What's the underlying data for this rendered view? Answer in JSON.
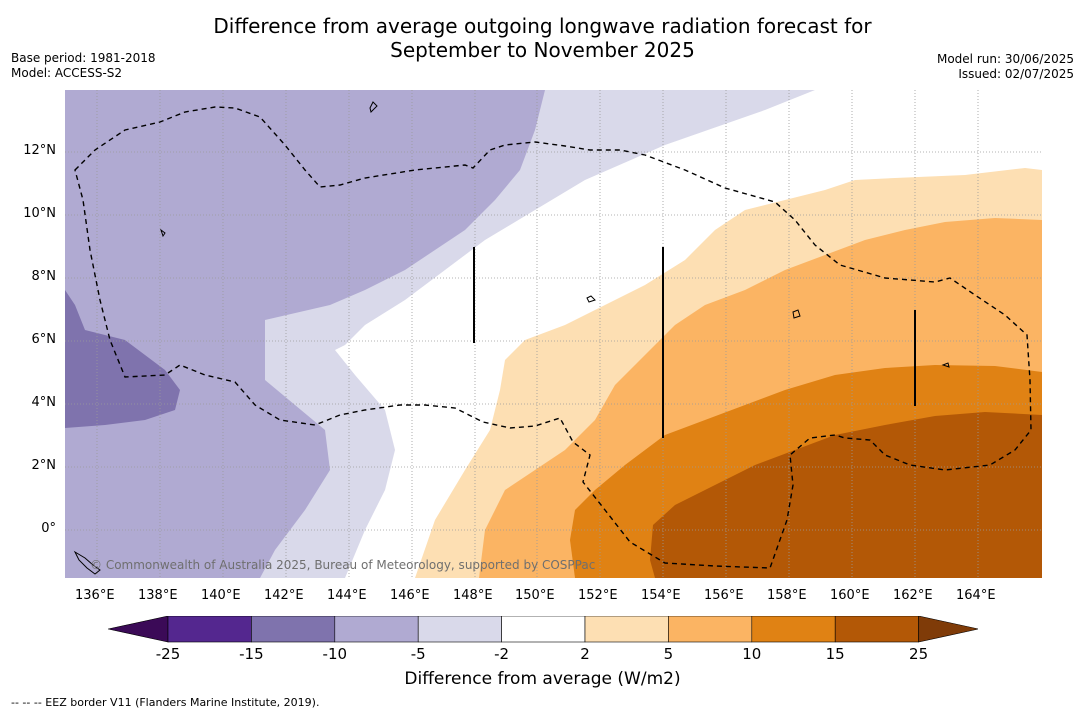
{
  "header": {
    "title_line1": "Difference from average outgoing longwave radiation forecast for",
    "title_line2": "September to November 2025",
    "base_period": "Base period: 1981-2018",
    "model": "Model: ACCESS-S2",
    "model_run": "Model run: 30/06/2025",
    "issued": "Issued: 02/07/2025"
  },
  "map": {
    "copyright": "© Commonwealth of Australia 2025, Bureau of Meteorology, supported by COSPPac",
    "lon_ticks": [
      "136°E",
      "138°E",
      "140°E",
      "142°E",
      "144°E",
      "146°E",
      "148°E",
      "150°E",
      "152°E",
      "154°E",
      "156°E",
      "158°E",
      "160°E",
      "162°E",
      "164°E"
    ],
    "lat_ticks": [
      "12°N",
      "10°N",
      "8°N",
      "6°N",
      "4°N",
      "2°N",
      "0°"
    ],
    "contour_colors": {
      "lt_-25": "#3b0a57",
      "-25_-15": "#54278f",
      "-15_-10": "#7f73ad",
      "-10_-5": "#b0aad2",
      "-5_-2": "#d9d9ea",
      "-2_2": "#ffffff",
      "2_5": "#fddfb3",
      "5_10": "#fbb463",
      "10_15": "#e08214",
      "15_25": "#b35806",
      "gt_25": "#7f3b08"
    }
  },
  "colorbar": {
    "labels": [
      "-25",
      "-15",
      "-10",
      "-5",
      "-2",
      "2",
      "5",
      "10",
      "15",
      "25"
    ],
    "title": "Difference from average (W/m2)"
  },
  "footer": {
    "legend_text": "--  --  -- EEZ border V11 (Flanders Marine Institute, 2019)."
  }
}
